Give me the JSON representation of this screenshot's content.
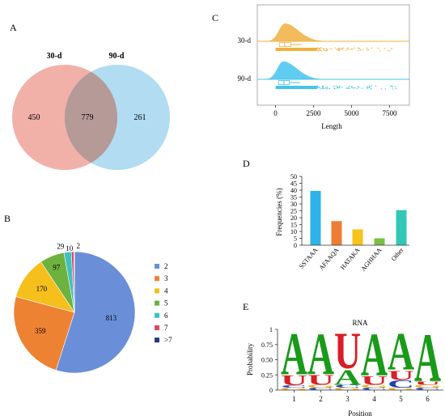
{
  "panels": {
    "A": "A",
    "B": "B",
    "C": "C",
    "D": "D",
    "E": "E"
  },
  "chart_data": [
    {
      "panel": "A",
      "type": "venn",
      "sets": [
        "30-d",
        "90-d"
      ],
      "colors": [
        "#f0a8a0",
        "#a8d8f0"
      ],
      "only_first": 450,
      "intersection": 779,
      "only_second": 261
    },
    {
      "panel": "B",
      "type": "pie",
      "categories": [
        "2",
        "3",
        "4",
        "5",
        "6",
        "7",
        ">7"
      ],
      "values": [
        813,
        359,
        170,
        97,
        29,
        10,
        2
      ],
      "colors": [
        "#6a8fd8",
        "#ee8233",
        "#f5bf1c",
        "#6db13f",
        "#3ec1c1",
        "#d94b5f",
        "#223a7a"
      ],
      "legend_position": "right"
    },
    {
      "panel": "C",
      "type": "raincloud",
      "xlabel": "Length",
      "xticks": [
        0,
        2500,
        5000,
        7500
      ],
      "xlim": [
        -1200,
        8800
      ],
      "groups": [
        {
          "name": "30-d",
          "color": "#f0b040",
          "peak": 600,
          "box": [
            250,
            600,
            1000
          ],
          "whisker_max": 1700,
          "points_max": 8000
        },
        {
          "name": "90-d",
          "color": "#45c3ef",
          "peak": 500,
          "box": [
            200,
            550,
            900
          ],
          "whisker_max": 1600,
          "points_max": 8000
        }
      ]
    },
    {
      "panel": "D",
      "type": "bar",
      "categories": [
        "SSTAAA",
        "AFAAQA",
        "HATAKA",
        "AGHHAA",
        "Other"
      ],
      "values": [
        39.5,
        17.5,
        11.5,
        5,
        25.5
      ],
      "colors": [
        "#2fb3e8",
        "#ee7c33",
        "#f8c31a",
        "#7bc043",
        "#33c7b5"
      ],
      "ylabel": "Frequencies (%)",
      "ylim": [
        0,
        50
      ],
      "yticks": [
        0,
        5,
        10,
        15,
        20,
        25,
        30,
        35,
        40,
        45,
        50
      ]
    },
    {
      "panel": "E",
      "type": "sequence-logo",
      "title": "RNA",
      "xlabel": "Position",
      "ylabel": "Probability",
      "ylim": [
        0,
        1
      ],
      "yticks": [
        0,
        0.25,
        0.5,
        0.75,
        1
      ],
      "ytick_labels": [
        "0",
        "0.25",
        "0.50",
        "0.75",
        "1"
      ],
      "positions": [
        "1",
        "2",
        "3",
        "4",
        "5",
        "6"
      ],
      "letter_colors": {
        "A": "#1a9a1a",
        "U": "#d81f26",
        "C": "#1a3fb8",
        "G": "#f0a820"
      },
      "stacks": [
        [
          {
            "letter": "G",
            "p": 0.04
          },
          {
            "letter": "C",
            "p": 0.04
          },
          {
            "letter": "U",
            "p": 0.18
          },
          {
            "letter": "A",
            "p": 0.74
          }
        ],
        [
          {
            "letter": "C",
            "p": 0.04
          },
          {
            "letter": "G",
            "p": 0.05
          },
          {
            "letter": "U",
            "p": 0.18
          },
          {
            "letter": "A",
            "p": 0.73
          }
        ],
        [
          {
            "letter": "G",
            "p": 0.04
          },
          {
            "letter": "C",
            "p": 0.05
          },
          {
            "letter": "A",
            "p": 0.27
          },
          {
            "letter": "U",
            "p": 0.64
          }
        ],
        [
          {
            "letter": "C",
            "p": 0.04
          },
          {
            "letter": "G",
            "p": 0.05
          },
          {
            "letter": "U",
            "p": 0.16
          },
          {
            "letter": "A",
            "p": 0.75
          }
        ],
        [
          {
            "letter": "G",
            "p": 0.04
          },
          {
            "letter": "C",
            "p": 0.13
          },
          {
            "letter": "U",
            "p": 0.17
          },
          {
            "letter": "A",
            "p": 0.66
          }
        ],
        [
          {
            "letter": "C",
            "p": 0.04
          },
          {
            "letter": "G",
            "p": 0.05
          },
          {
            "letter": "U",
            "p": 0.06
          },
          {
            "letter": "A",
            "p": 0.85
          }
        ]
      ]
    }
  ]
}
